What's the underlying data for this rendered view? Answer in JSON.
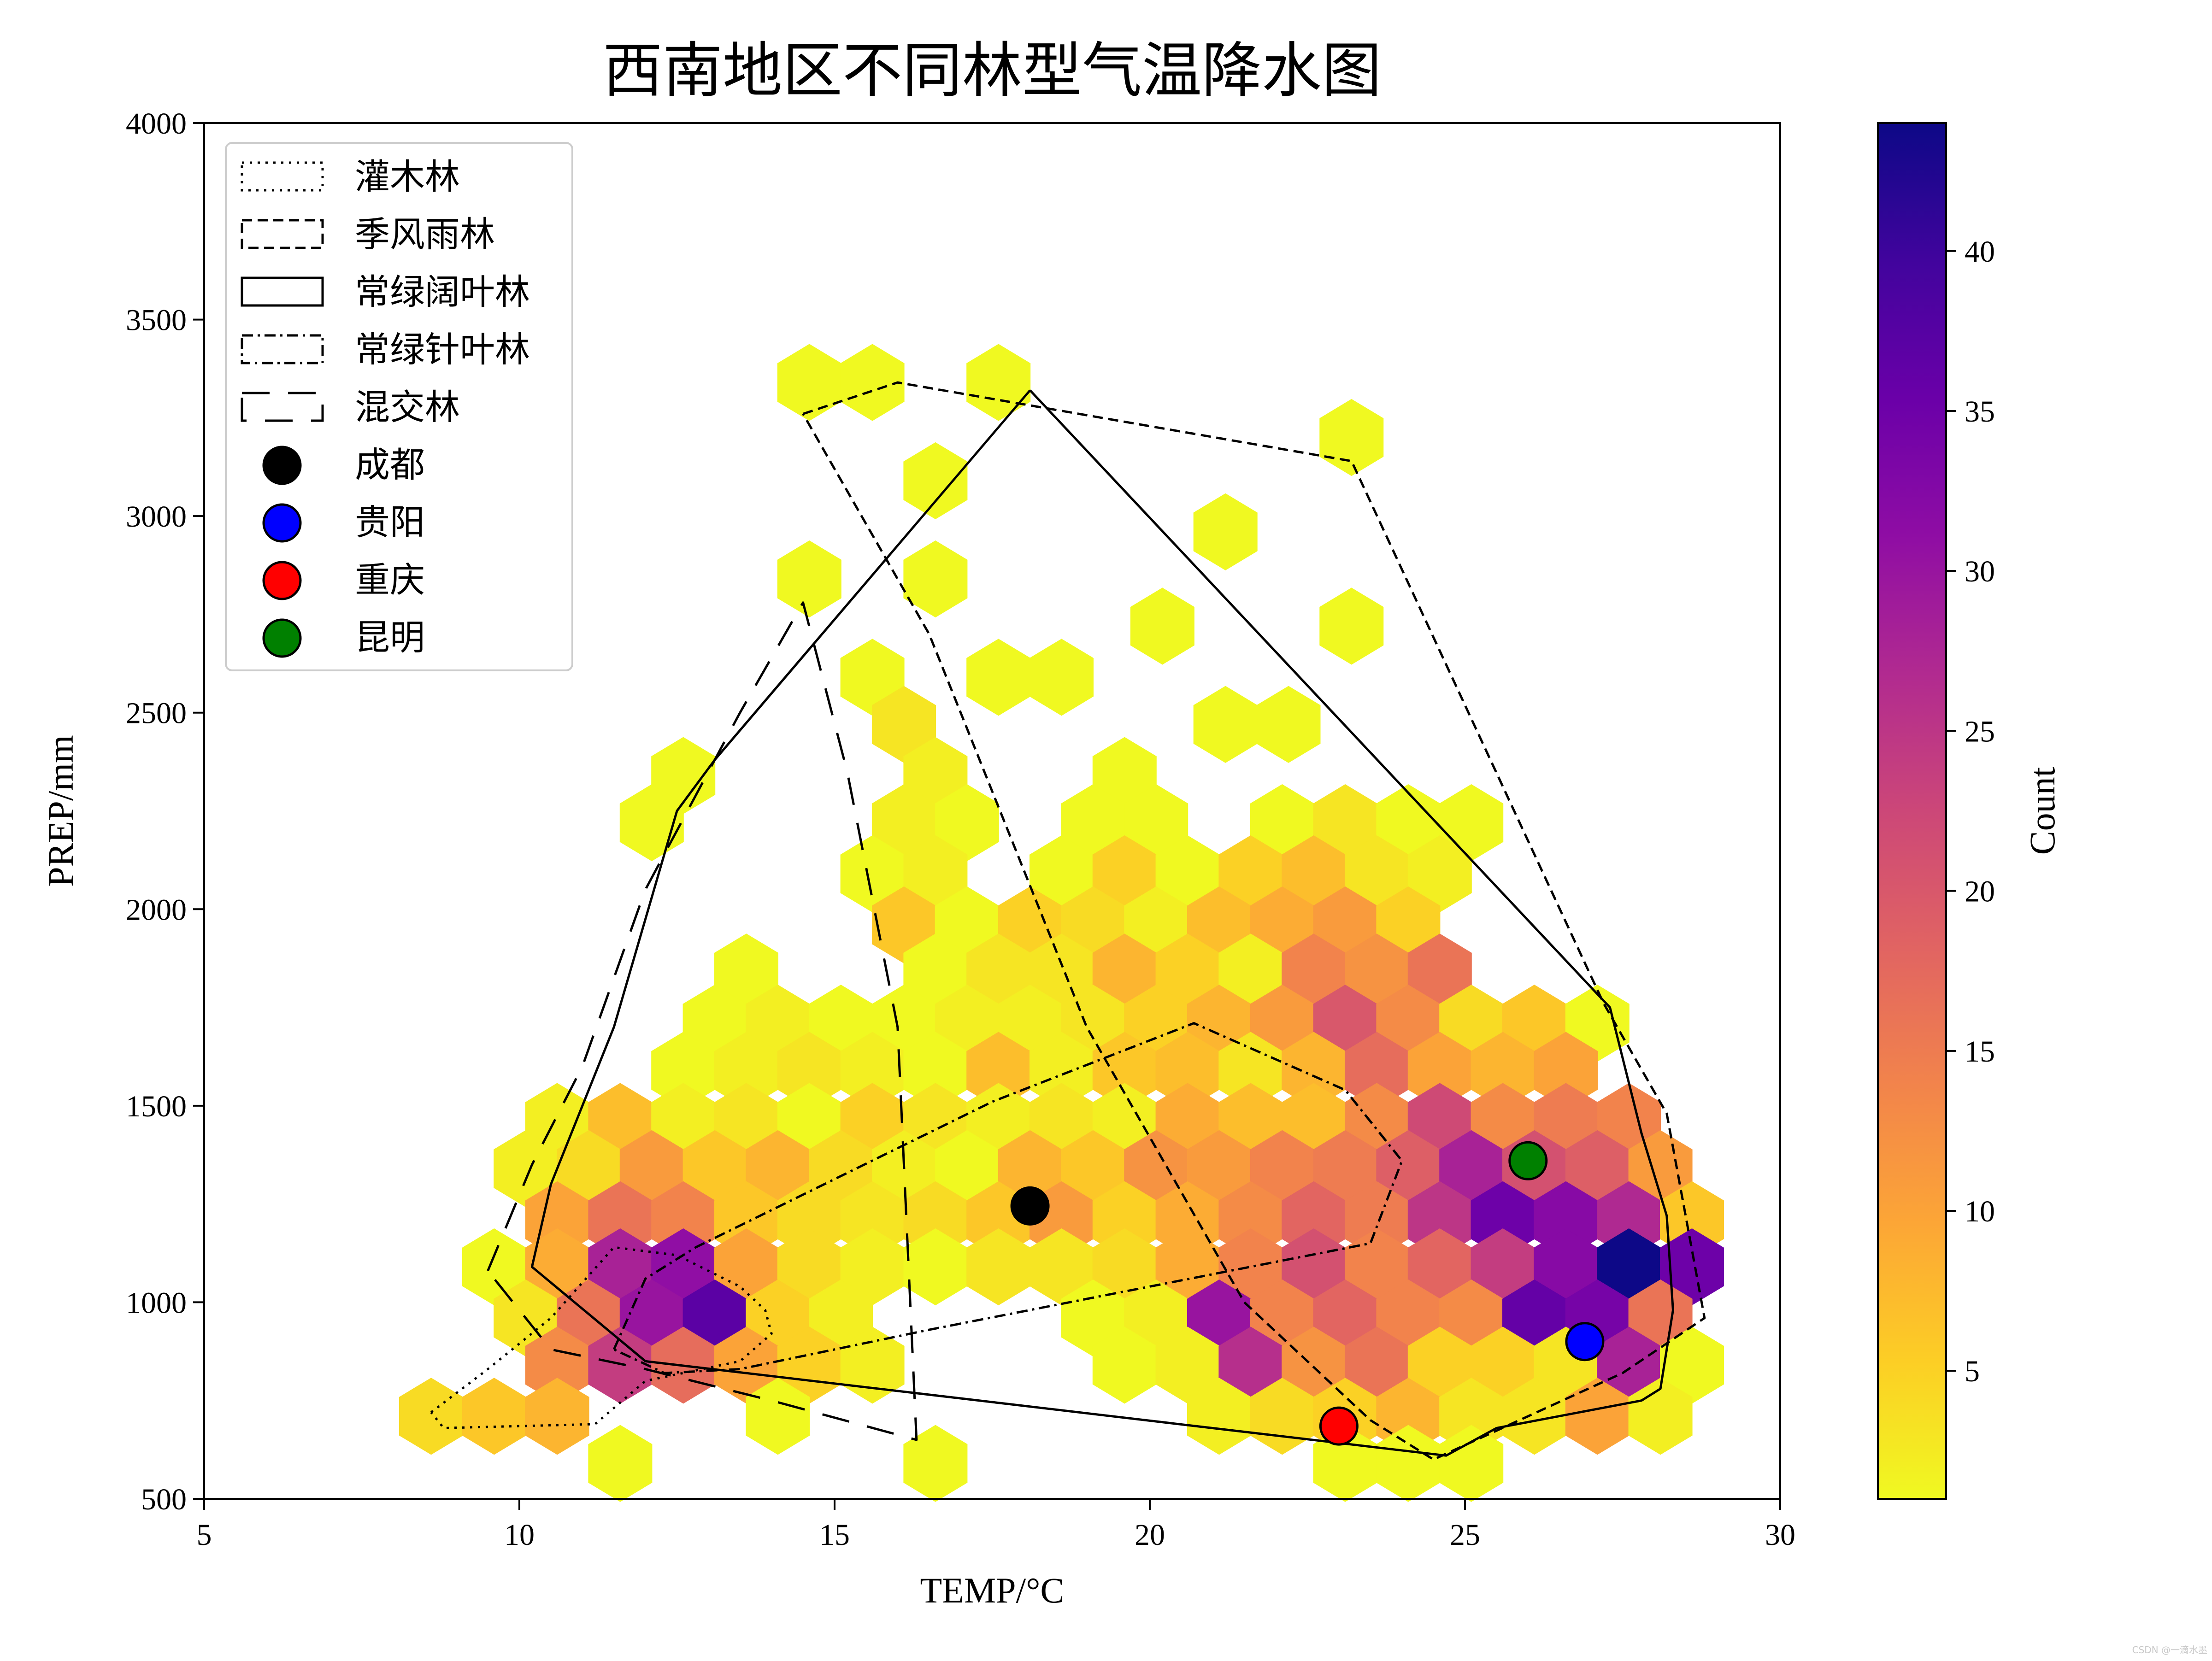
{
  "chart_data": {
    "type": "hexbin",
    "title": "西南地区不同林型气温降水图",
    "xlabel": "TEMP/°C",
    "ylabel": "PREP/mm",
    "xlim": [
      5,
      30
    ],
    "ylim": [
      500,
      4000
    ],
    "xticks": [
      "5",
      "10",
      "15",
      "20",
      "25",
      "30"
    ],
    "yticks": [
      "500",
      "1000",
      "1500",
      "2000",
      "2500",
      "3000",
      "3500",
      "4000"
    ],
    "colorbar": {
      "label": "Count",
      "range": [
        1,
        44
      ],
      "ticks": [
        "5",
        "10",
        "15",
        "20",
        "25",
        "30",
        "35",
        "40"
      ],
      "colormap": "plasma_r"
    },
    "hexbins": [
      [
        14.6,
        3340,
        1
      ],
      [
        15.6,
        3340,
        1
      ],
      [
        17.6,
        3340,
        1
      ],
      [
        23.2,
        3200,
        1
      ],
      [
        16.6,
        3090,
        1
      ],
      [
        21.2,
        2960,
        1
      ],
      [
        14.6,
        2840,
        1
      ],
      [
        16.6,
        2840,
        1
      ],
      [
        20.2,
        2720,
        1
      ],
      [
        23.2,
        2720,
        1
      ],
      [
        15.6,
        2590,
        1
      ],
      [
        17.6,
        2590,
        1
      ],
      [
        18.6,
        2590,
        1
      ],
      [
        16.1,
        2470,
        3
      ],
      [
        21.2,
        2470,
        1
      ],
      [
        22.2,
        2470,
        1
      ],
      [
        12.6,
        2340,
        1
      ],
      [
        16.6,
        2340,
        2
      ],
      [
        19.6,
        2340,
        1
      ],
      [
        12.1,
        2220,
        1
      ],
      [
        16.1,
        2220,
        2
      ],
      [
        17.1,
        2220,
        1
      ],
      [
        19.1,
        2220,
        1
      ],
      [
        20.1,
        2220,
        1
      ],
      [
        22.1,
        2220,
        1
      ],
      [
        23.1,
        2220,
        3
      ],
      [
        24.1,
        2220,
        1
      ],
      [
        25.1,
        2220,
        1
      ],
      [
        15.6,
        2090,
        1
      ],
      [
        16.6,
        2090,
        2
      ],
      [
        18.6,
        2090,
        1
      ],
      [
        19.6,
        2090,
        5
      ],
      [
        20.6,
        2090,
        1
      ],
      [
        21.6,
        2090,
        5
      ],
      [
        22.6,
        2090,
        7
      ],
      [
        23.6,
        2090,
        3
      ],
      [
        24.6,
        2090,
        2
      ],
      [
        16.1,
        1960,
        6
      ],
      [
        17.1,
        1960,
        1
      ],
      [
        18.1,
        1960,
        5
      ],
      [
        19.1,
        1960,
        4
      ],
      [
        20.1,
        1960,
        2
      ],
      [
        21.1,
        1960,
        7
      ],
      [
        22.1,
        1960,
        9
      ],
      [
        23.1,
        1960,
        11
      ],
      [
        24.1,
        1960,
        5
      ],
      [
        13.6,
        1840,
        1
      ],
      [
        16.6,
        1840,
        1
      ],
      [
        17.6,
        1840,
        3
      ],
      [
        18.6,
        1840,
        3
      ],
      [
        19.6,
        1840,
        8
      ],
      [
        20.6,
        1840,
        5
      ],
      [
        21.6,
        1840,
        2
      ],
      [
        22.6,
        1840,
        14
      ],
      [
        23.6,
        1840,
        12
      ],
      [
        24.6,
        1840,
        16
      ],
      [
        13.1,
        1710,
        1
      ],
      [
        14.1,
        1710,
        2
      ],
      [
        15.1,
        1710,
        1
      ],
      [
        16.1,
        1710,
        1
      ],
      [
        17.1,
        1710,
        2
      ],
      [
        18.1,
        1710,
        2
      ],
      [
        19.1,
        1710,
        3
      ],
      [
        20.1,
        1710,
        5
      ],
      [
        21.1,
        1710,
        8
      ],
      [
        22.1,
        1710,
        11
      ],
      [
        23.1,
        1710,
        20
      ],
      [
        24.1,
        1710,
        13
      ],
      [
        25.1,
        1710,
        4
      ],
      [
        26.1,
        1710,
        6
      ],
      [
        27.1,
        1710,
        1
      ],
      [
        12.6,
        1590,
        1
      ],
      [
        13.6,
        1590,
        2
      ],
      [
        14.6,
        1590,
        3
      ],
      [
        15.6,
        1590,
        2
      ],
      [
        16.6,
        1590,
        1
      ],
      [
        17.6,
        1590,
        7
      ],
      [
        18.6,
        1590,
        2
      ],
      [
        19.6,
        1590,
        6
      ],
      [
        20.6,
        1590,
        7
      ],
      [
        21.6,
        1590,
        3
      ],
      [
        22.6,
        1590,
        8
      ],
      [
        23.6,
        1590,
        17
      ],
      [
        24.6,
        1590,
        10
      ],
      [
        25.6,
        1590,
        8
      ],
      [
        26.6,
        1590,
        10
      ],
      [
        10.6,
        1460,
        2
      ],
      [
        11.6,
        1460,
        7
      ],
      [
        12.6,
        1460,
        2
      ],
      [
        13.6,
        1460,
        3
      ],
      [
        14.6,
        1460,
        1
      ],
      [
        15.6,
        1460,
        5
      ],
      [
        16.6,
        1460,
        3
      ],
      [
        17.6,
        1460,
        2
      ],
      [
        18.6,
        1460,
        3
      ],
      [
        19.6,
        1460,
        2
      ],
      [
        20.6,
        1460,
        9
      ],
      [
        21.6,
        1460,
        7
      ],
      [
        22.6,
        1460,
        7
      ],
      [
        23.6,
        1460,
        13
      ],
      [
        24.6,
        1460,
        22
      ],
      [
        25.6,
        1460,
        13
      ],
      [
        26.6,
        1460,
        15
      ],
      [
        27.6,
        1460,
        14
      ],
      [
        10.1,
        1340,
        2
      ],
      [
        11.1,
        1340,
        4
      ],
      [
        12.1,
        1340,
        11
      ],
      [
        13.1,
        1340,
        6
      ],
      [
        14.1,
        1340,
        8
      ],
      [
        15.1,
        1340,
        4
      ],
      [
        16.1,
        1340,
        2
      ],
      [
        17.1,
        1340,
        1
      ],
      [
        18.1,
        1340,
        8
      ],
      [
        19.1,
        1340,
        6
      ],
      [
        20.1,
        1340,
        12
      ],
      [
        21.1,
        1340,
        11
      ],
      [
        22.1,
        1340,
        14
      ],
      [
        23.1,
        1340,
        15
      ],
      [
        24.1,
        1340,
        19
      ],
      [
        25.1,
        1340,
        28
      ],
      [
        26.1,
        1340,
        21
      ],
      [
        27.1,
        1340,
        19
      ],
      [
        28.1,
        1340,
        11
      ],
      [
        10.6,
        1210,
        10
      ],
      [
        11.6,
        1210,
        16
      ],
      [
        12.6,
        1210,
        14
      ],
      [
        13.6,
        1210,
        6
      ],
      [
        14.6,
        1210,
        4
      ],
      [
        15.6,
        1210,
        3
      ],
      [
        16.6,
        1210,
        4
      ],
      [
        17.6,
        1210,
        6
      ],
      [
        18.6,
        1210,
        11
      ],
      [
        19.6,
        1210,
        5
      ],
      [
        20.6,
        1210,
        9
      ],
      [
        21.6,
        1210,
        13
      ],
      [
        22.6,
        1210,
        18
      ],
      [
        23.6,
        1210,
        15
      ],
      [
        24.6,
        1210,
        25
      ],
      [
        25.6,
        1210,
        35
      ],
      [
        26.6,
        1210,
        32
      ],
      [
        27.6,
        1210,
        27
      ],
      [
        28.6,
        1210,
        6
      ],
      [
        9.6,
        1090,
        1
      ],
      [
        10.6,
        1090,
        9
      ],
      [
        11.6,
        1090,
        28
      ],
      [
        12.6,
        1090,
        31
      ],
      [
        13.6,
        1090,
        10
      ],
      [
        14.6,
        1090,
        4
      ],
      [
        15.6,
        1090,
        2
      ],
      [
        16.6,
        1090,
        1
      ],
      [
        17.6,
        1090,
        3
      ],
      [
        18.6,
        1090,
        3
      ],
      [
        19.6,
        1090,
        4
      ],
      [
        20.6,
        1090,
        9
      ],
      [
        21.6,
        1090,
        14
      ],
      [
        22.6,
        1090,
        21
      ],
      [
        23.6,
        1090,
        14
      ],
      [
        24.6,
        1090,
        18
      ],
      [
        25.6,
        1090,
        24
      ],
      [
        26.6,
        1090,
        32
      ],
      [
        27.6,
        1090,
        44
      ],
      [
        28.6,
        1090,
        35
      ],
      [
        10.1,
        960,
        3
      ],
      [
        11.1,
        960,
        16
      ],
      [
        12.1,
        960,
        30
      ],
      [
        13.1,
        960,
        37
      ],
      [
        14.1,
        960,
        5
      ],
      [
        15.1,
        960,
        2
      ],
      [
        19.1,
        960,
        1
      ],
      [
        20.1,
        960,
        2
      ],
      [
        21.1,
        960,
        30
      ],
      [
        22.1,
        960,
        14
      ],
      [
        23.1,
        960,
        18
      ],
      [
        24.1,
        960,
        14
      ],
      [
        25.1,
        960,
        13
      ],
      [
        26.1,
        960,
        36
      ],
      [
        27.1,
        960,
        34
      ],
      [
        28.1,
        960,
        16
      ],
      [
        10.6,
        840,
        13
      ],
      [
        11.6,
        840,
        24
      ],
      [
        12.6,
        840,
        17
      ],
      [
        13.6,
        840,
        10
      ],
      [
        14.6,
        840,
        5
      ],
      [
        15.6,
        840,
        2
      ],
      [
        19.6,
        840,
        1
      ],
      [
        20.6,
        840,
        2
      ],
      [
        21.6,
        840,
        26
      ],
      [
        22.6,
        840,
        12
      ],
      [
        23.6,
        840,
        16
      ],
      [
        24.6,
        840,
        5
      ],
      [
        25.6,
        840,
        5
      ],
      [
        26.6,
        840,
        3
      ],
      [
        27.6,
        840,
        28
      ],
      [
        28.6,
        840,
        1
      ],
      [
        8.6,
        710,
        4
      ],
      [
        9.6,
        710,
        6
      ],
      [
        10.6,
        710,
        8
      ],
      [
        14.1,
        710,
        1
      ],
      [
        21.1,
        710,
        2
      ],
      [
        22.1,
        710,
        4
      ],
      [
        23.1,
        710,
        5
      ],
      [
        24.1,
        710,
        8
      ],
      [
        25.1,
        710,
        3
      ],
      [
        26.1,
        710,
        3
      ],
      [
        27.1,
        710,
        10
      ],
      [
        28.1,
        710,
        2
      ],
      [
        11.6,
        590,
        1
      ],
      [
        16.6,
        590,
        1
      ],
      [
        23.1,
        590,
        1
      ],
      [
        24.1,
        590,
        1
      ],
      [
        25.1,
        590,
        1
      ]
    ],
    "series": [
      {
        "name": "灌木林",
        "style": "dotted",
        "points": [
          [
            8.6,
            720
          ],
          [
            9.5,
            830
          ],
          [
            10.5,
            960
          ],
          [
            11.5,
            1140
          ],
          [
            12.5,
            1120
          ],
          [
            13.5,
            1040
          ],
          [
            13.9,
            980
          ],
          [
            14.0,
            920
          ],
          [
            13.5,
            850
          ],
          [
            12.0,
            800
          ],
          [
            11.2,
            690
          ],
          [
            8.8,
            680
          ],
          [
            8.6,
            720
          ]
        ]
      },
      {
        "name": "季风雨林",
        "style": "dashed",
        "points": [
          [
            14.5,
            3260
          ],
          [
            16.0,
            3340
          ],
          [
            23.2,
            3140
          ],
          [
            27.2,
            1760
          ],
          [
            28.2,
            1480
          ],
          [
            28.8,
            960
          ],
          [
            27.5,
            820
          ],
          [
            26.0,
            710
          ],
          [
            24.5,
            600
          ],
          [
            23.5,
            700
          ],
          [
            21.5,
            1000
          ],
          [
            19.0,
            1700
          ],
          [
            16.5,
            2700
          ],
          [
            14.5,
            3260
          ]
        ]
      },
      {
        "name": "常绿阔叶林",
        "style": "solid",
        "points": [
          [
            18.1,
            3320
          ],
          [
            27.3,
            1750
          ],
          [
            27.8,
            1430
          ],
          [
            28.2,
            1220
          ],
          [
            28.3,
            980
          ],
          [
            28.1,
            780
          ],
          [
            27.8,
            750
          ],
          [
            25.5,
            680
          ],
          [
            24.7,
            610
          ],
          [
            12.0,
            850
          ],
          [
            10.2,
            1090
          ],
          [
            10.5,
            1300
          ],
          [
            11.5,
            1700
          ],
          [
            12.5,
            2250
          ],
          [
            13.1,
            2380
          ],
          [
            18.1,
            3320
          ]
        ]
      },
      {
        "name": "常绿针叶林",
        "style": "dashdot",
        "points": [
          [
            11.5,
            880
          ],
          [
            12.0,
            1060
          ],
          [
            12.8,
            1140
          ],
          [
            17.5,
            1510
          ],
          [
            20.7,
            1710
          ],
          [
            23.1,
            1540
          ],
          [
            24.0,
            1360
          ],
          [
            23.5,
            1150
          ],
          [
            16.5,
            930
          ],
          [
            13.5,
            830
          ],
          [
            12.3,
            820
          ],
          [
            11.5,
            880
          ]
        ]
      },
      {
        "name": "混交林",
        "style": "longdash",
        "points": [
          [
            9.5,
            1080
          ],
          [
            10.2,
            1350
          ],
          [
            11.0,
            1600
          ],
          [
            12.0,
            2050
          ],
          [
            13.5,
            2500
          ],
          [
            14.5,
            2780
          ],
          [
            15.2,
            2350
          ],
          [
            16.0,
            1700
          ],
          [
            16.3,
            650
          ],
          [
            14.0,
            750
          ],
          [
            12.0,
            830
          ],
          [
            10.5,
            880
          ],
          [
            9.5,
            1080
          ]
        ]
      }
    ],
    "cities": [
      {
        "name": "成都",
        "x": 18.1,
        "y": 1245,
        "color": "#000000"
      },
      {
        "name": "贵阳",
        "x": 26.9,
        "y": 900,
        "color": "#0000ff"
      },
      {
        "name": "重庆",
        "x": 23.0,
        "y": 685,
        "color": "#ff0000"
      },
      {
        "name": "昆明",
        "x": 26.0,
        "y": 1360,
        "color": "#008000"
      }
    ],
    "legend_position": "upper-left"
  },
  "watermark": "CSDN @一滴水墨"
}
